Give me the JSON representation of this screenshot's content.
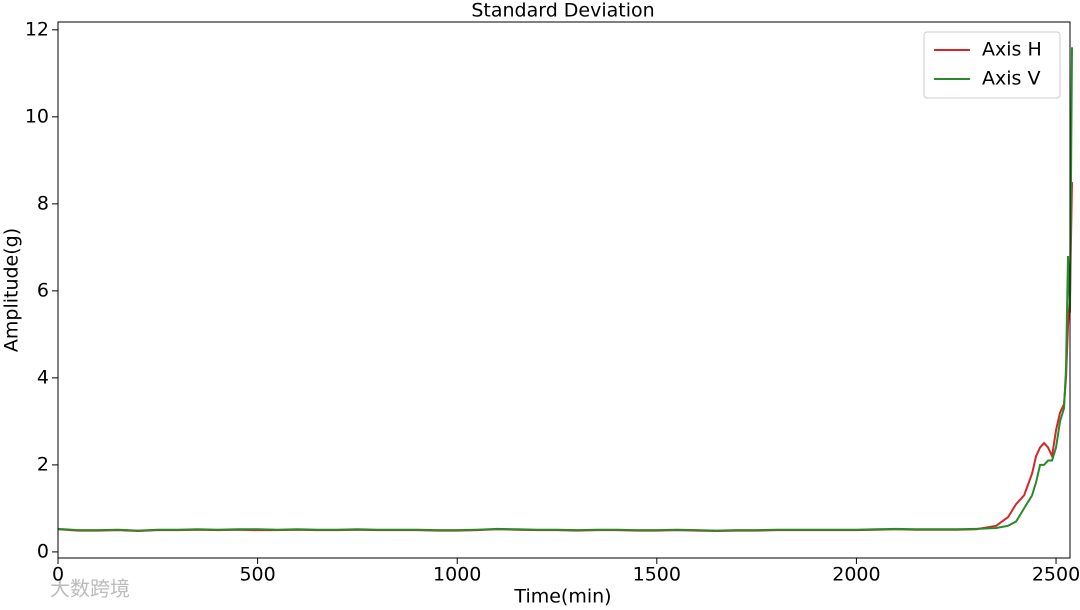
{
  "chart_data": {
    "type": "line",
    "title": "Standard Deviation",
    "xlabel": "Time(min)",
    "ylabel": "Amplitude(g)",
    "watermark": "大数跨境",
    "x": [
      0,
      50,
      100,
      150,
      200,
      250,
      300,
      350,
      400,
      450,
      500,
      550,
      600,
      650,
      700,
      750,
      800,
      850,
      900,
      950,
      1000,
      1050,
      1100,
      1150,
      1200,
      1250,
      1300,
      1350,
      1400,
      1450,
      1500,
      1550,
      1600,
      1650,
      1700,
      1750,
      1800,
      1850,
      1900,
      1950,
      2000,
      2050,
      2100,
      2150,
      2200,
      2250,
      2300,
      2350,
      2380,
      2400,
      2420,
      2440,
      2450,
      2460,
      2470,
      2480,
      2490,
      2500,
      2510,
      2520,
      2525,
      2530,
      2535,
      2540
    ],
    "series": [
      {
        "name": "Axis H",
        "color": "#d62728",
        "values": [
          0.52,
          0.49,
          0.49,
          0.5,
          0.48,
          0.5,
          0.5,
          0.51,
          0.5,
          0.51,
          0.5,
          0.5,
          0.51,
          0.5,
          0.5,
          0.51,
          0.5,
          0.5,
          0.5,
          0.49,
          0.49,
          0.5,
          0.52,
          0.51,
          0.5,
          0.5,
          0.49,
          0.5,
          0.5,
          0.49,
          0.49,
          0.5,
          0.49,
          0.48,
          0.49,
          0.49,
          0.5,
          0.5,
          0.5,
          0.5,
          0.5,
          0.51,
          0.52,
          0.51,
          0.51,
          0.51,
          0.52,
          0.6,
          0.8,
          1.1,
          1.3,
          1.8,
          2.2,
          2.4,
          2.5,
          2.4,
          2.2,
          2.8,
          3.2,
          3.4,
          4.0,
          5.2,
          5.9,
          8.5
        ]
      },
      {
        "name": "Axis V",
        "color": "#2a8a2a",
        "values": [
          0.53,
          0.5,
          0.5,
          0.51,
          0.49,
          0.51,
          0.51,
          0.52,
          0.51,
          0.52,
          0.52,
          0.51,
          0.52,
          0.51,
          0.51,
          0.52,
          0.51,
          0.51,
          0.51,
          0.5,
          0.5,
          0.51,
          0.53,
          0.52,
          0.51,
          0.51,
          0.5,
          0.51,
          0.51,
          0.5,
          0.5,
          0.51,
          0.5,
          0.49,
          0.5,
          0.5,
          0.51,
          0.51,
          0.51,
          0.51,
          0.51,
          0.52,
          0.53,
          0.52,
          0.52,
          0.52,
          0.53,
          0.55,
          0.6,
          0.7,
          1.0,
          1.3,
          1.6,
          2.0,
          2.0,
          2.1,
          2.1,
          2.4,
          3.0,
          3.3,
          4.2,
          6.8,
          5.5,
          11.6
        ]
      }
    ],
    "xlim": [
      0,
      2535
    ],
    "ylim": [
      -0.14,
      12.18
    ],
    "xticks": [
      0,
      500,
      1000,
      1500,
      2000,
      2500
    ],
    "yticks": [
      0,
      2,
      4,
      6,
      8,
      10,
      12
    ],
    "legend": "upper right"
  }
}
